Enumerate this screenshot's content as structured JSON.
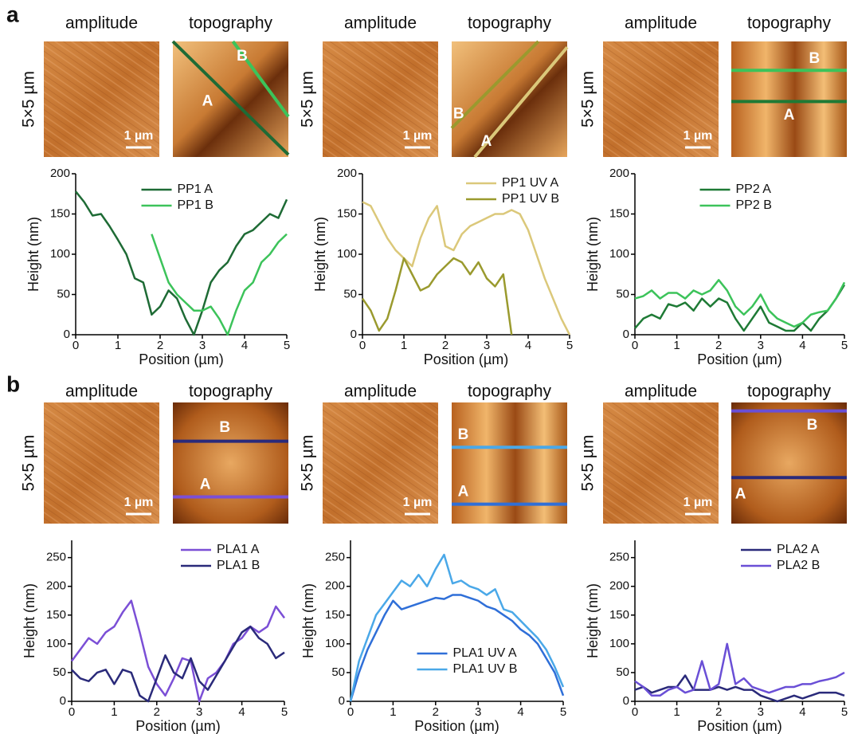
{
  "figure": {
    "panel_labels": [
      "a",
      "b"
    ],
    "image_titles": [
      "amplitude",
      "topography"
    ],
    "scan_size": "5×5 µm",
    "scale_bar": "1 µm",
    "line_labels": [
      "A",
      "B"
    ]
  },
  "chart_data": [
    {
      "type": "line",
      "xlabel": "Position (µm)",
      "ylabel": "Height (nm)",
      "legend": "upper center",
      "x": [
        0,
        0.2,
        0.4,
        0.6,
        0.8,
        1,
        1.2,
        1.4,
        1.6,
        1.8,
        2,
        2.2,
        2.4,
        2.6,
        2.8,
        3,
        3.2,
        3.4,
        3.6,
        3.8,
        4,
        4.2,
        4.4,
        4.6,
        4.8,
        5
      ],
      "series": [
        {
          "name": "PP1 A",
          "color": "#1e6b35",
          "values": [
            178,
            165,
            148,
            150,
            135,
            118,
            100,
            70,
            65,
            25,
            35,
            55,
            45,
            20,
            0,
            30,
            65,
            80,
            90,
            110,
            125,
            130,
            140,
            150,
            145,
            168
          ]
        },
        {
          "name": "PP1 B",
          "color": "#3cc35a",
          "values": [
            null,
            null,
            null,
            null,
            null,
            null,
            null,
            null,
            null,
            125,
            95,
            65,
            50,
            40,
            30,
            30,
            35,
            20,
            0,
            30,
            55,
            65,
            90,
            100,
            115,
            125
          ]
        }
      ],
      "xlim": [
        0,
        5
      ],
      "xticks": [
        0,
        1,
        2,
        3,
        4,
        5
      ],
      "ylim": [
        0,
        200
      ],
      "yticks": [
        0,
        50,
        100,
        150,
        200
      ]
    },
    {
      "type": "line",
      "xlabel": "Position (µm)",
      "ylabel": "Height (nm)",
      "legend": "upper right",
      "x": [
        0,
        0.2,
        0.4,
        0.6,
        0.8,
        1,
        1.2,
        1.4,
        1.6,
        1.8,
        2,
        2.2,
        2.4,
        2.6,
        2.8,
        3,
        3.2,
        3.4,
        3.6,
        3.8,
        4,
        4.2,
        4.4,
        4.6,
        4.8,
        5
      ],
      "series": [
        {
          "name": "PP1 UV A",
          "color": "#dbc87a",
          "values": [
            165,
            160,
            140,
            120,
            105,
            95,
            85,
            120,
            145,
            160,
            110,
            105,
            125,
            135,
            140,
            145,
            150,
            150,
            155,
            150,
            130,
            100,
            70,
            45,
            20,
            0
          ]
        },
        {
          "name": "PP1 UV B",
          "color": "#9a9a2e",
          "values": [
            45,
            30,
            5,
            20,
            55,
            95,
            75,
            55,
            60,
            75,
            85,
            95,
            90,
            75,
            90,
            70,
            60,
            75,
            0,
            null,
            null,
            null,
            null,
            null,
            null,
            null
          ]
        }
      ],
      "xlim": [
        0,
        5
      ],
      "xticks": [
        0,
        1,
        2,
        3,
        4,
        5
      ],
      "ylim": [
        0,
        200
      ],
      "yticks": [
        0,
        50,
        100,
        150,
        200
      ]
    },
    {
      "type": "line",
      "xlabel": "Position (µm)",
      "ylabel": "Height (nm)",
      "legend": "upper center",
      "x": [
        0,
        0.2,
        0.4,
        0.6,
        0.8,
        1,
        1.2,
        1.4,
        1.6,
        1.8,
        2,
        2.2,
        2.4,
        2.6,
        2.8,
        3,
        3.2,
        3.4,
        3.6,
        3.8,
        4,
        4.2,
        4.4,
        4.6,
        4.8,
        5
      ],
      "series": [
        {
          "name": "PP2 A",
          "color": "#1e7a35",
          "values": [
            8,
            20,
            25,
            20,
            38,
            35,
            40,
            30,
            45,
            35,
            45,
            40,
            20,
            5,
            20,
            35,
            15,
            10,
            5,
            5,
            15,
            5,
            20,
            30,
            45,
            62
          ]
        },
        {
          "name": "PP2 B",
          "color": "#3cc35a",
          "values": [
            45,
            48,
            55,
            45,
            52,
            52,
            45,
            55,
            50,
            55,
            68,
            55,
            35,
            25,
            35,
            50,
            30,
            20,
            15,
            10,
            15,
            25,
            28,
            30,
            45,
            65
          ]
        }
      ],
      "xlim": [
        0,
        5
      ],
      "xticks": [
        0,
        1,
        2,
        3,
        4,
        5
      ],
      "ylim": [
        0,
        200
      ],
      "yticks": [
        0,
        50,
        100,
        150,
        200
      ]
    },
    {
      "type": "line",
      "xlabel": "Position (µm)",
      "ylabel": "Height (nm)",
      "legend": "upper right",
      "x": [
        0,
        0.2,
        0.4,
        0.6,
        0.8,
        1,
        1.2,
        1.4,
        1.6,
        1.8,
        2,
        2.2,
        2.4,
        2.6,
        2.8,
        3,
        3.2,
        3.4,
        3.6,
        3.8,
        4,
        4.2,
        4.4,
        4.6,
        4.8,
        5
      ],
      "series": [
        {
          "name": "PLA1 A",
          "color": "#7b4fd6",
          "values": [
            70,
            90,
            110,
            100,
            120,
            130,
            155,
            175,
            120,
            60,
            30,
            10,
            40,
            75,
            70,
            0,
            40,
            50,
            70,
            100,
            110,
            130,
            120,
            130,
            165,
            145
          ]
        },
        {
          "name": "PLA1 B",
          "color": "#2a2a7a",
          "values": [
            55,
            40,
            35,
            50,
            55,
            30,
            55,
            50,
            10,
            0,
            40,
            80,
            50,
            40,
            75,
            35,
            20,
            45,
            70,
            95,
            120,
            130,
            110,
            100,
            75,
            85
          ]
        }
      ],
      "xlim": [
        0,
        5
      ],
      "xticks": [
        0,
        1,
        2,
        3,
        4,
        5
      ],
      "ylim": [
        0,
        280
      ],
      "yticks": [
        0,
        50,
        100,
        150,
        200,
        250
      ]
    },
    {
      "type": "line",
      "xlabel": "Position (µm)",
      "ylabel": "Height (nm)",
      "legend": "lower center",
      "x": [
        0,
        0.2,
        0.4,
        0.6,
        0.8,
        1,
        1.2,
        1.4,
        1.6,
        1.8,
        2,
        2.2,
        2.4,
        2.6,
        2.8,
        3,
        3.2,
        3.4,
        3.6,
        3.8,
        4,
        4.2,
        4.4,
        4.6,
        4.8,
        5
      ],
      "series": [
        {
          "name": "PLA1 UV A",
          "color": "#2f6fd8",
          "values": [
            0,
            50,
            90,
            120,
            150,
            175,
            160,
            165,
            170,
            175,
            180,
            178,
            185,
            185,
            180,
            175,
            165,
            160,
            150,
            140,
            125,
            115,
            100,
            75,
            50,
            10
          ]
        },
        {
          "name": "PLA1 UV B",
          "color": "#4aa8e8",
          "values": [
            0,
            70,
            110,
            150,
            170,
            190,
            210,
            200,
            220,
            200,
            230,
            255,
            205,
            210,
            200,
            195,
            185,
            195,
            160,
            155,
            140,
            125,
            110,
            90,
            60,
            25
          ]
        }
      ],
      "xlim": [
        0,
        5
      ],
      "xticks": [
        0,
        1,
        2,
        3,
        4,
        5
      ],
      "ylim": [
        0,
        280
      ],
      "yticks": [
        0,
        50,
        100,
        150,
        200,
        250
      ]
    },
    {
      "type": "line",
      "xlabel": "Position (µm)",
      "ylabel": "Height (nm)",
      "legend": "upper right",
      "x": [
        0,
        0.2,
        0.4,
        0.6,
        0.8,
        1,
        1.2,
        1.4,
        1.6,
        1.8,
        2,
        2.2,
        2.4,
        2.6,
        2.8,
        3,
        3.2,
        3.4,
        3.6,
        3.8,
        4,
        4.2,
        4.4,
        4.6,
        4.8,
        5
      ],
      "series": [
        {
          "name": "PLA2 A",
          "color": "#2a2a7a",
          "values": [
            20,
            25,
            15,
            20,
            25,
            25,
            45,
            20,
            20,
            20,
            25,
            20,
            25,
            20,
            20,
            10,
            5,
            0,
            5,
            10,
            5,
            10,
            15,
            15,
            15,
            10
          ]
        },
        {
          "name": "PLA2 B",
          "color": "#6a4fd6",
          "values": [
            35,
            25,
            10,
            10,
            20,
            25,
            15,
            20,
            70,
            20,
            30,
            100,
            30,
            40,
            25,
            20,
            15,
            20,
            25,
            25,
            30,
            30,
            35,
            38,
            42,
            50
          ]
        }
      ],
      "xlim": [
        0,
        5
      ],
      "xticks": [
        0,
        1,
        2,
        3,
        4,
        5
      ],
      "ylim": [
        0,
        280
      ],
      "yticks": [
        0,
        50,
        100,
        150,
        200,
        250
      ]
    }
  ]
}
